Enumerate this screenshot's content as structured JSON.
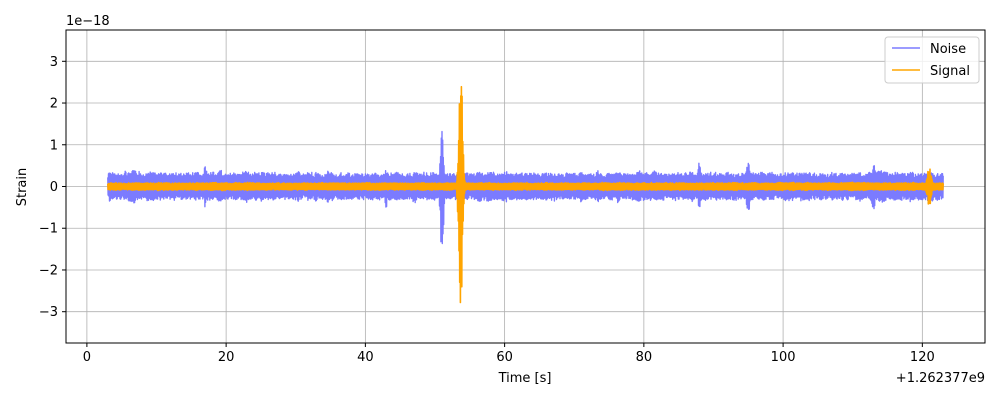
{
  "chart_data": {
    "type": "line",
    "title": "",
    "xlabel": "Time [s]",
    "ylabel": "Strain",
    "x_offset_label": "+1.262377e9",
    "y_scale_label": "1e−18",
    "xlim": [
      -3,
      129
    ],
    "ylim": [
      -3.75,
      3.75
    ],
    "xticks": [
      0,
      20,
      40,
      60,
      80,
      100,
      120
    ],
    "xtick_labels": [
      "0",
      "20",
      "40",
      "60",
      "80",
      "100",
      "120"
    ],
    "yticks": [
      -3,
      -2,
      -1,
      0,
      1,
      2,
      3
    ],
    "ytick_labels": [
      "−3",
      "−2",
      "−1",
      "0",
      "1",
      "2",
      "3"
    ],
    "grid": true,
    "legend_position": "top-right",
    "series": [
      {
        "name": "Noise",
        "color": "#7b7bff",
        "x_range": [
          3,
          123
        ],
        "baseline_amplitude": 0.3,
        "burst_events": [
          {
            "x": 51.0,
            "amplitude": 1.6
          },
          {
            "x": 43.0,
            "amplitude": 0.5
          },
          {
            "x": 47.0,
            "amplitude": 0.45
          },
          {
            "x": 88.0,
            "amplitude": 0.6
          },
          {
            "x": 95.0,
            "amplitude": 0.65
          },
          {
            "x": 113.0,
            "amplitude": 0.6
          },
          {
            "x": 17.0,
            "amplitude": 0.5
          }
        ]
      },
      {
        "name": "Signal",
        "color": "#ffa500",
        "x_range": [
          3,
          123
        ],
        "baseline_amplitude": 0.08,
        "burst_events": [
          {
            "x": 53.7,
            "amplitude": 3.4
          },
          {
            "x": 121.0,
            "amplitude": 0.5
          }
        ]
      }
    ]
  }
}
